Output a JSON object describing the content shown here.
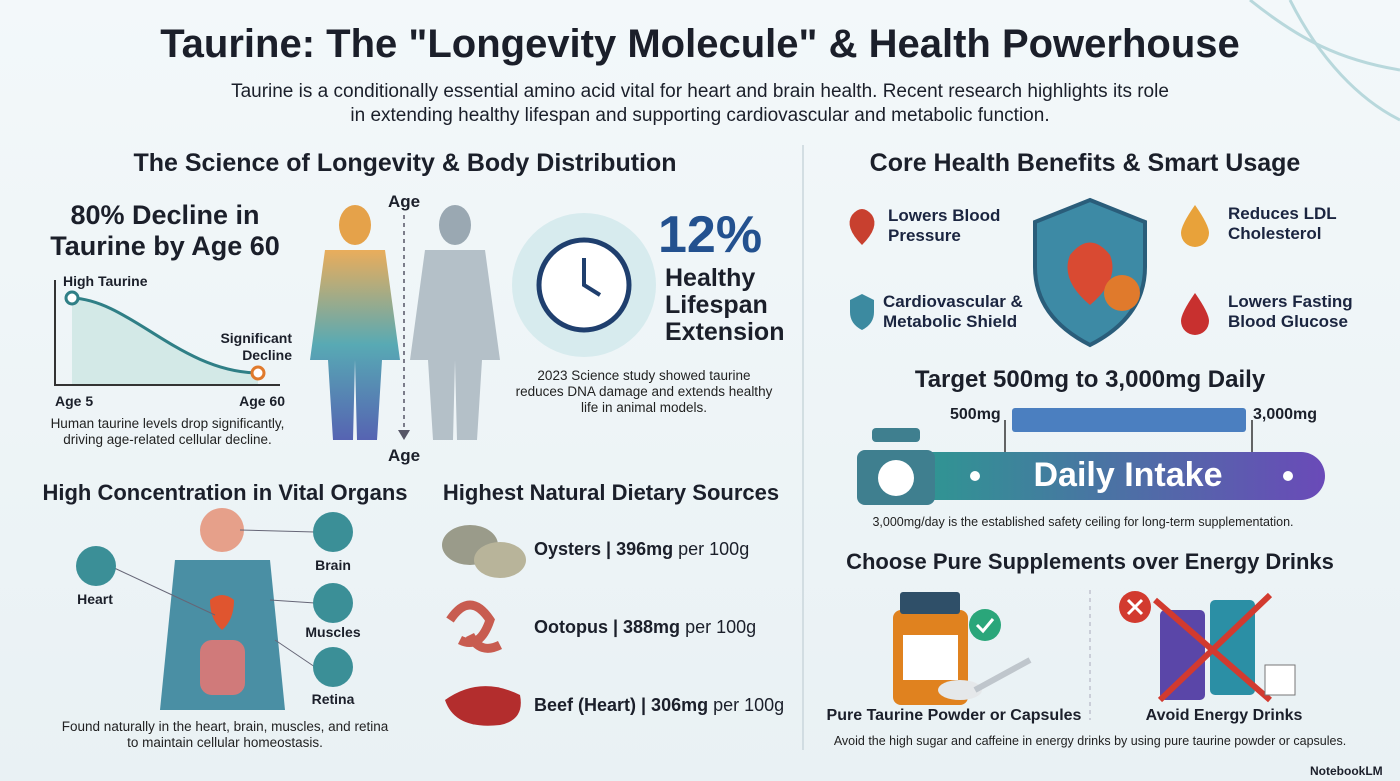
{
  "header": {
    "title": "Taurine: The \"Longevity Molecule\" & Health Powerhouse",
    "subtitle": "Taurine is a conditionally essential amino acid vital for heart and brain health. Recent research highlights its role in extending healthy lifespan and supporting cardiovascular and metabolic function."
  },
  "longevity": {
    "heading": "The Science of Longevity & Body Distribution",
    "decline": {
      "title": "80% Decline in Taurine by Age 60",
      "high_label": "High Taurine",
      "low_label": "Significant Decline",
      "start_label": "Age 5",
      "end_label": "Age 60",
      "caption": "Human taurine levels drop significantly, driving age-related cellular decline."
    },
    "age_top": "Age",
    "age_bottom": "Age",
    "lifespan": {
      "value": "12%",
      "label": "Healthy Lifespan Extension",
      "caption": "2023 Science study showed taurine reduces DNA damage and extends healthy life in animal models."
    }
  },
  "organs": {
    "heading": "High Concentration in Vital Organs",
    "items": [
      "Heart",
      "Brain",
      "Muscles",
      "Retina"
    ],
    "caption": "Found naturally in the heart, brain, muscles, and retina to maintain cellular homeostasis."
  },
  "sources": {
    "heading": "Highest Natural Dietary Sources",
    "items": [
      {
        "name": "Oysters | 396mg",
        "unit": "per 100g"
      },
      {
        "name": "Ootopus | 388mg",
        "unit": "per 100g"
      },
      {
        "name": "Beef (Heart) | 306mg",
        "unit": "per 100g"
      }
    ]
  },
  "benefits": {
    "heading": "Core Health Benefits & Smart Usage",
    "items": [
      "Lowers Blood Pressure",
      "Cardiovascular & Metabolic Shield",
      "Reduces LDL Cholesterol",
      "Lowers Fasting Blood Glucose"
    ]
  },
  "dosage": {
    "heading": "Target 500mg to 3,000mg Daily",
    "min_label": "500mg",
    "max_label": "3,000mg",
    "bar_label": "Daily Intake",
    "caption": "3,000mg/day is the established safety ceiling for long-term supplementation."
  },
  "supplements": {
    "heading": "Choose Pure Supplements over Energy Drinks",
    "good": "Pure Taurine Powder or Capsules",
    "bad": "Avoid Energy Drinks",
    "caption": "Avoid the high sugar and caffeine in energy drinks by using pure taurine powder or capsules."
  },
  "footer": {
    "brand": "NotebookLM"
  }
}
